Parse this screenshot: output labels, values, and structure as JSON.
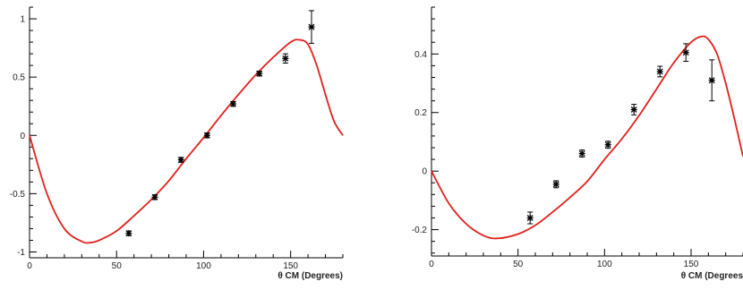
{
  "chart_data": [
    {
      "type": "scatter",
      "title": "",
      "xlabel": "θ CM (Degrees)",
      "ylabel": "",
      "xlim": [
        0,
        180
      ],
      "ylim": [
        -1.05,
        1.1
      ],
      "xticks": [
        0,
        50,
        100,
        150
      ],
      "xtick_labels": [
        "0",
        "50",
        "100",
        "150"
      ],
      "yticks": [
        -1,
        -0.5,
        0,
        0.5,
        1
      ],
      "ytick_labels": [
        "-1",
        "-0.5",
        "0",
        "0.5",
        "1"
      ],
      "grid": false,
      "colors": {
        "curve": "#e0201a",
        "points": "#000000",
        "axis": "#000000"
      },
      "series": [
        {
          "kind": "errorbar-points",
          "x": [
            57,
            72,
            87,
            102,
            117,
            132,
            147,
            162
          ],
          "y": [
            -0.84,
            -0.53,
            -0.21,
            0.0,
            0.27,
            0.53,
            0.66,
            0.93
          ],
          "yerr": [
            0.02,
            0.02,
            0.02,
            0.02,
            0.02,
            0.02,
            0.04,
            0.14
          ]
        },
        {
          "kind": "curve",
          "x": [
            0,
            10,
            20,
            30,
            35,
            40,
            50,
            60,
            70,
            80,
            90,
            100,
            110,
            120,
            130,
            140,
            150,
            155,
            160,
            165,
            170,
            175,
            180
          ],
          "y": [
            0.0,
            -0.5,
            -0.8,
            -0.91,
            -0.92,
            -0.9,
            -0.82,
            -0.69,
            -0.55,
            -0.39,
            -0.2,
            -0.02,
            0.17,
            0.35,
            0.52,
            0.67,
            0.8,
            0.82,
            0.78,
            0.6,
            0.35,
            0.12,
            0.0
          ]
        }
      ]
    },
    {
      "type": "scatter",
      "title": "",
      "xlabel": "θ CM (Degrees",
      "ylabel": "",
      "xlim": [
        0,
        180
      ],
      "ylim": [
        -0.29,
        0.56
      ],
      "xticks": [
        0,
        50,
        100,
        150
      ],
      "xtick_labels": [
        "0",
        "50",
        "100",
        "150"
      ],
      "yticks": [
        -0.2,
        0,
        0.2,
        0.4
      ],
      "ytick_labels": [
        "-0.2",
        "0",
        "0.2",
        "0.4"
      ],
      "grid": false,
      "colors": {
        "curve": "#e0201a",
        "points": "#000000",
        "axis": "#000000"
      },
      "series": [
        {
          "kind": "errorbar-points",
          "x": [
            57,
            72,
            87,
            102,
            117,
            132,
            147,
            162
          ],
          "y": [
            -0.16,
            -0.045,
            0.06,
            0.09,
            0.21,
            0.34,
            0.405,
            0.31
          ],
          "yerr": [
            0.02,
            0.012,
            0.012,
            0.012,
            0.018,
            0.018,
            0.03,
            0.07
          ]
        },
        {
          "kind": "curve",
          "x": [
            0,
            10,
            20,
            30,
            38,
            50,
            60,
            70,
            80,
            90,
            100,
            110,
            120,
            130,
            140,
            150,
            156,
            160,
            165,
            170,
            175,
            180
          ],
          "y": [
            0.0,
            -0.11,
            -0.18,
            -0.22,
            -0.23,
            -0.215,
            -0.185,
            -0.14,
            -0.09,
            -0.035,
            0.04,
            0.11,
            0.19,
            0.28,
            0.37,
            0.44,
            0.46,
            0.45,
            0.4,
            0.3,
            0.18,
            0.05
          ]
        }
      ]
    }
  ]
}
